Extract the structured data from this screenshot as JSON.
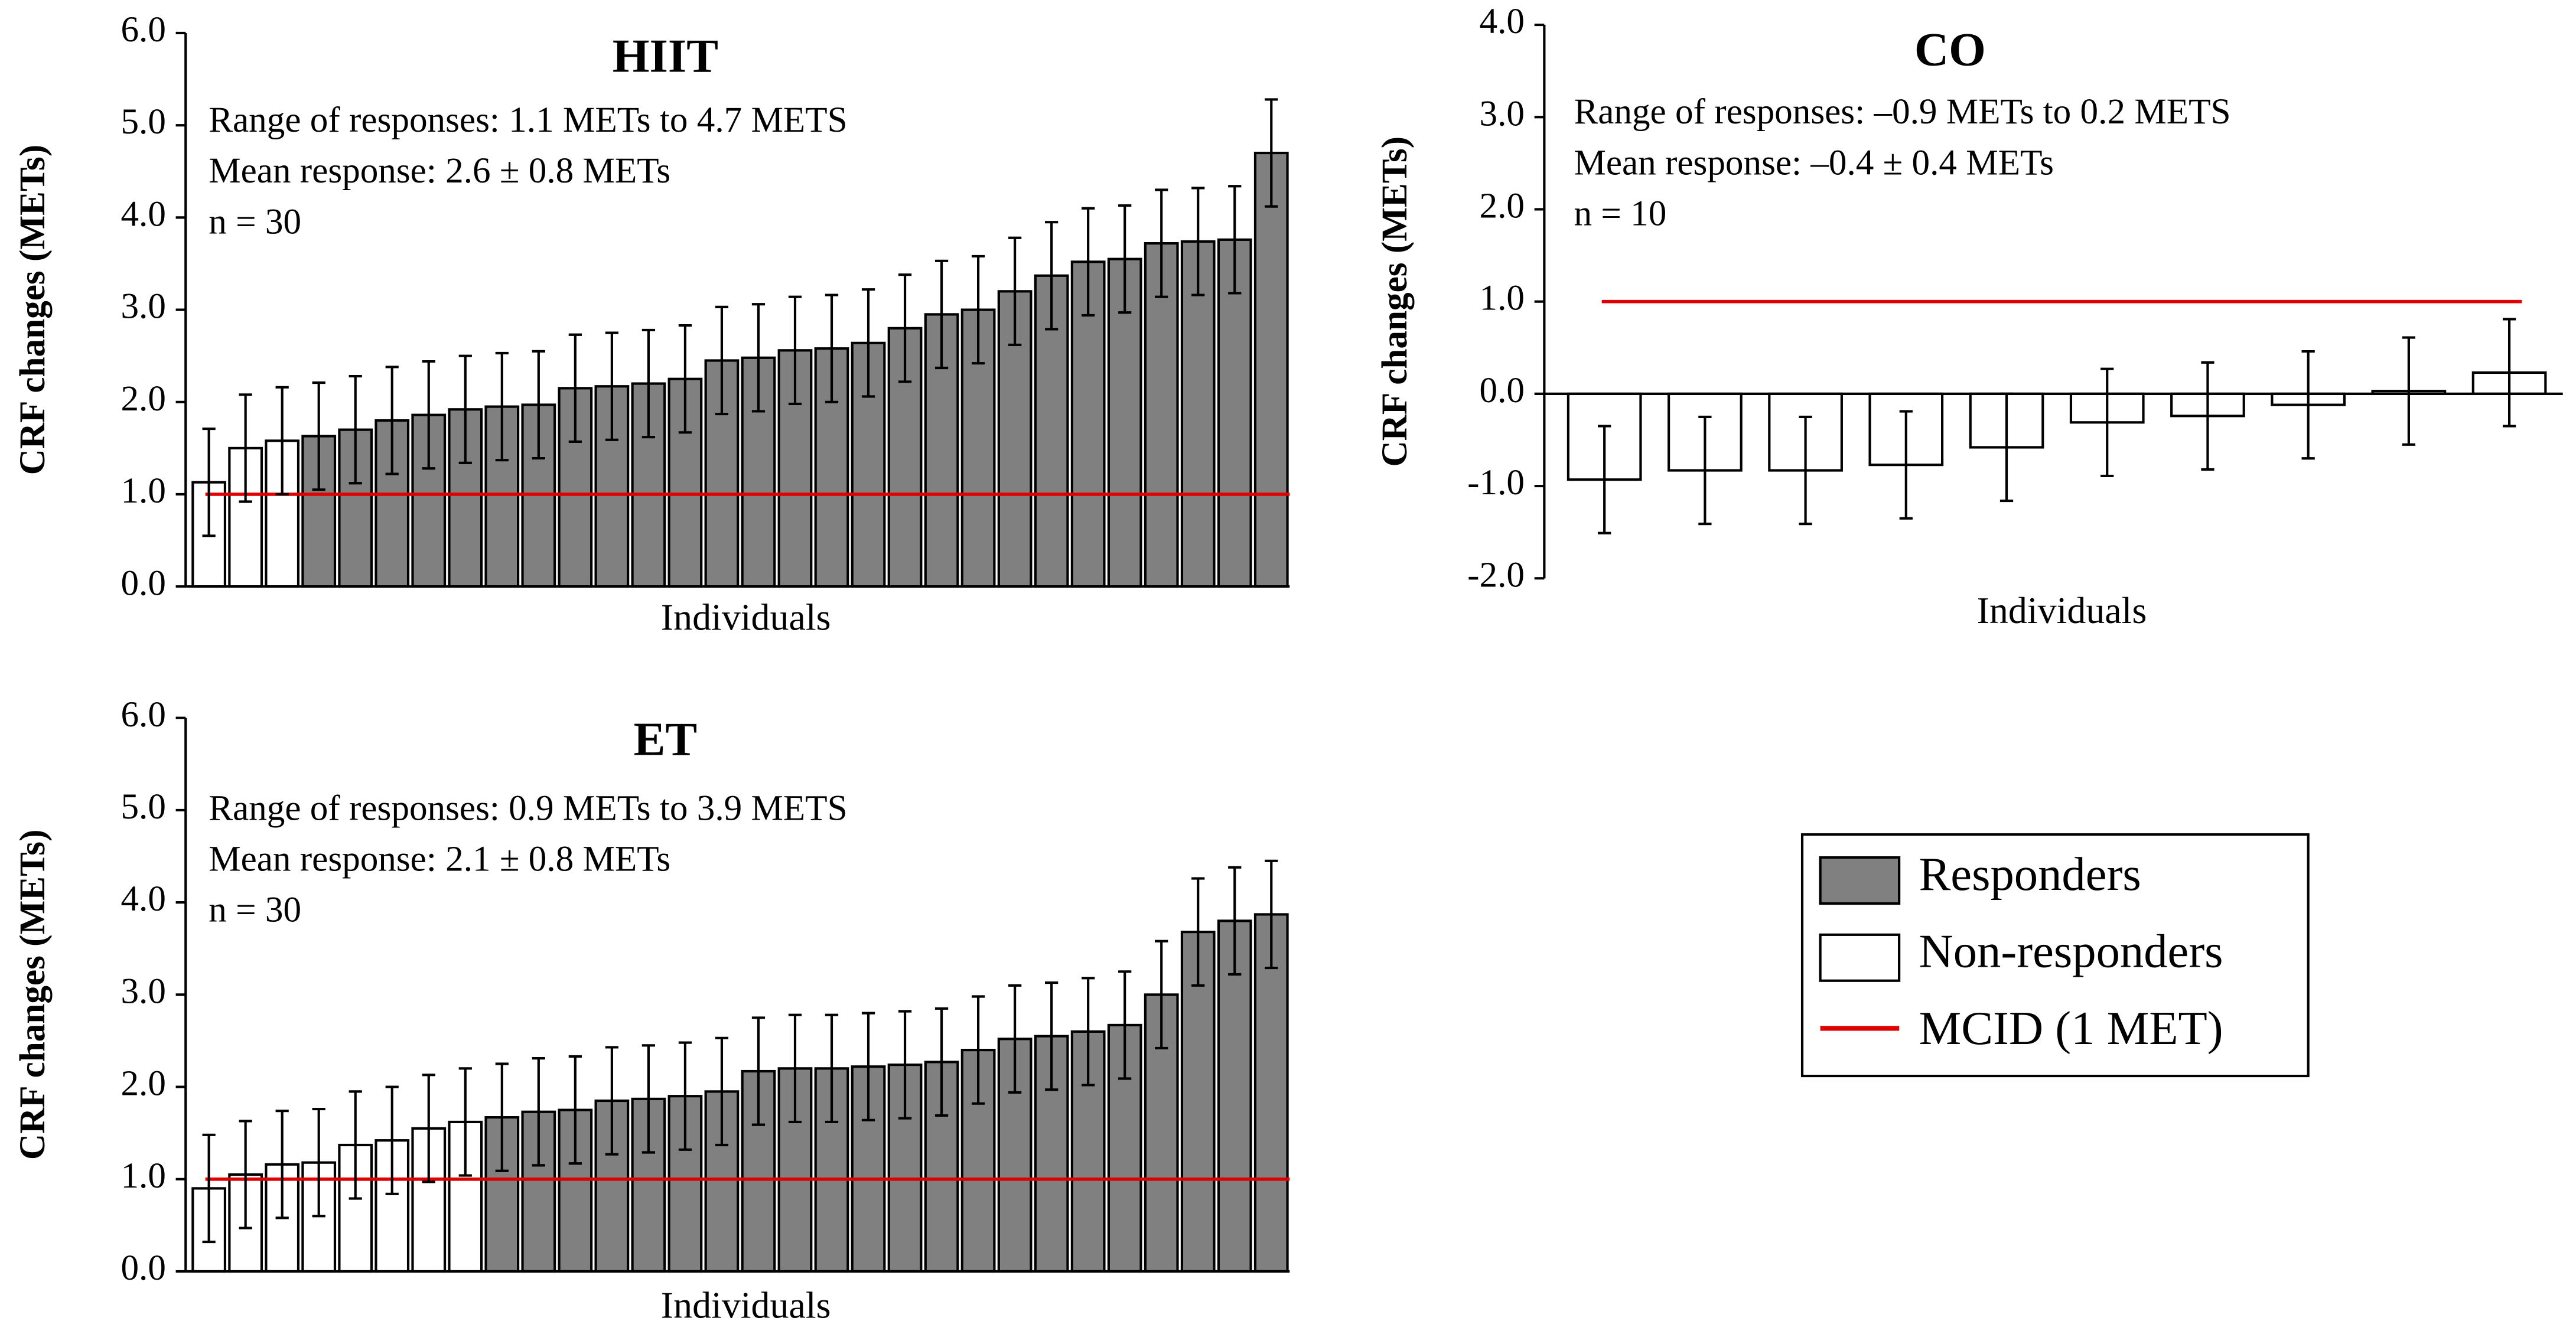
{
  "chart_data": [
    {
      "type": "bar",
      "title": "HIIT",
      "annotations": [
        "Range of responses: 1.1 METs to 4.7 METS",
        "Mean response: 2.6 ± 0.8 METs",
        "n = 30"
      ],
      "y_label": "CRF changes (METs)",
      "x_label": "Individuals",
      "ylim": [
        0,
        6
      ],
      "yticks": [
        {
          "value": 0,
          "label": "0.0"
        },
        {
          "value": 1,
          "label": "1.0"
        },
        {
          "value": 2,
          "label": "2.0"
        },
        {
          "value": 3,
          "label": "3.0"
        },
        {
          "value": 4,
          "label": "4.0"
        },
        {
          "value": 5,
          "label": "5.0"
        },
        {
          "value": 6,
          "label": "6.0"
        }
      ],
      "values": [
        1.13,
        1.5,
        1.58,
        1.63,
        1.7,
        1.8,
        1.86,
        1.92,
        1.95,
        1.97,
        2.15,
        2.17,
        2.2,
        2.25,
        2.45,
        2.48,
        2.56,
        2.58,
        2.64,
        2.8,
        2.95,
        3.0,
        3.2,
        3.37,
        3.52,
        3.55,
        3.72,
        3.74,
        3.76,
        4.7
      ],
      "errors": [
        0.58,
        0.58,
        0.58,
        0.58,
        0.58,
        0.58,
        0.58,
        0.58,
        0.58,
        0.58,
        0.58,
        0.58,
        0.58,
        0.58,
        0.58,
        0.58,
        0.58,
        0.58,
        0.58,
        0.58,
        0.58,
        0.58,
        0.58,
        0.58,
        0.58,
        0.58,
        0.58,
        0.58,
        0.58,
        0.58
      ],
      "colors": [
        "#ffffff",
        "#ffffff",
        "#ffffff",
        "#808080",
        "#808080",
        "#808080",
        "#808080",
        "#808080",
        "#808080",
        "#808080",
        "#808080",
        "#808080",
        "#808080",
        "#808080",
        "#808080",
        "#808080",
        "#808080",
        "#808080",
        "#808080",
        "#808080",
        "#808080",
        "#808080",
        "#808080",
        "#808080",
        "#808080",
        "#808080",
        "#808080",
        "#808080",
        "#808080",
        "#808080"
      ],
      "reference_line": {
        "value": 1,
        "color": "#e00000"
      }
    },
    {
      "type": "bar",
      "title": "CO",
      "annotations": [
        "Range of responses: –0.9 METs to 0.2 METS",
        "Mean response: –0.4 ± 0.4 METs",
        "n = 10"
      ],
      "y_label": "CRF changes (METs)",
      "x_label": "Individuals",
      "ylim": [
        -2,
        4
      ],
      "yticks": [
        {
          "value": -2,
          "label": "-2.0"
        },
        {
          "value": -1,
          "label": "-1.0"
        },
        {
          "value": 0,
          "label": "0.0"
        },
        {
          "value": 1,
          "label": "1.0"
        },
        {
          "value": 2,
          "label": "2.0"
        },
        {
          "value": 3,
          "label": "3.0"
        },
        {
          "value": 4,
          "label": "4.0"
        }
      ],
      "values": [
        -0.93,
        -0.83,
        -0.83,
        -0.77,
        -0.58,
        -0.31,
        -0.24,
        -0.12,
        0.03,
        0.23
      ],
      "errors": [
        0.58,
        0.58,
        0.58,
        0.58,
        0.58,
        0.58,
        0.58,
        0.58,
        0.58,
        0.58
      ],
      "colors": [
        "#ffffff",
        "#ffffff",
        "#ffffff",
        "#ffffff",
        "#ffffff",
        "#ffffff",
        "#ffffff",
        "#ffffff",
        "#ffffff",
        "#ffffff"
      ],
      "reference_line": {
        "value": 1,
        "color": "#e00000"
      }
    },
    {
      "type": "bar",
      "title": "ET",
      "annotations": [
        "Range of responses: 0.9 METs to 3.9 METS",
        "Mean response: 2.1 ± 0.8 METs",
        "n = 30"
      ],
      "y_label": "CRF changes (METs)",
      "x_label": "Individuals",
      "ylim": [
        0,
        6
      ],
      "yticks": [
        {
          "value": 0,
          "label": "0.0"
        },
        {
          "value": 1,
          "label": "1.0"
        },
        {
          "value": 2,
          "label": "2.0"
        },
        {
          "value": 3,
          "label": "3.0"
        },
        {
          "value": 4,
          "label": "4.0"
        },
        {
          "value": 5,
          "label": "5.0"
        },
        {
          "value": 6,
          "label": "6.0"
        }
      ],
      "values": [
        0.9,
        1.05,
        1.16,
        1.18,
        1.37,
        1.42,
        1.55,
        1.62,
        1.67,
        1.73,
        1.75,
        1.85,
        1.87,
        1.9,
        1.95,
        2.17,
        2.2,
        2.2,
        2.22,
        2.24,
        2.27,
        2.4,
        2.52,
        2.55,
        2.6,
        2.67,
        3.0,
        3.68,
        3.8,
        3.87
      ],
      "errors": [
        0.58,
        0.58,
        0.58,
        0.58,
        0.58,
        0.58,
        0.58,
        0.58,
        0.58,
        0.58,
        0.58,
        0.58,
        0.58,
        0.58,
        0.58,
        0.58,
        0.58,
        0.58,
        0.58,
        0.58,
        0.58,
        0.58,
        0.58,
        0.58,
        0.58,
        0.58,
        0.58,
        0.58,
        0.58,
        0.58
      ],
      "colors": [
        "#ffffff",
        "#ffffff",
        "#ffffff",
        "#ffffff",
        "#ffffff",
        "#ffffff",
        "#ffffff",
        "#ffffff",
        "#808080",
        "#808080",
        "#808080",
        "#808080",
        "#808080",
        "#808080",
        "#808080",
        "#808080",
        "#808080",
        "#808080",
        "#808080",
        "#808080",
        "#808080",
        "#808080",
        "#808080",
        "#808080",
        "#808080",
        "#808080",
        "#808080",
        "#808080",
        "#808080",
        "#808080"
      ],
      "reference_line": {
        "value": 1,
        "color": "#e00000"
      }
    }
  ],
  "legend": {
    "items": [
      {
        "name": "Responders",
        "color": "#808080",
        "kind": "box"
      },
      {
        "name": "Non-responders",
        "color": "#ffffff",
        "kind": "box"
      },
      {
        "name": "MCID (1 MET)",
        "color": "#e00000",
        "kind": "line"
      }
    ]
  }
}
